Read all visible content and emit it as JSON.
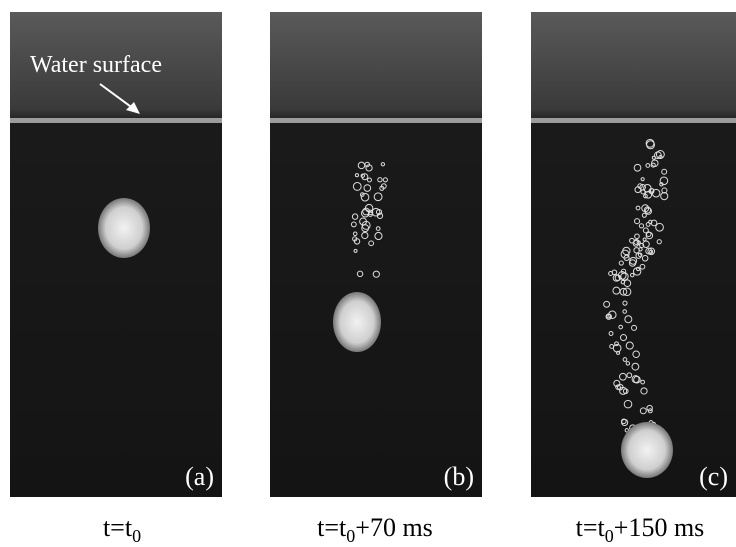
{
  "annotation": "Water surface",
  "panels": [
    {
      "label": "(a)",
      "caption": {
        "base": "t=t",
        "sub": "0"
      }
    },
    {
      "label": "(b)",
      "caption": {
        "base": "t=t",
        "sub": "0",
        "rest": "+70 ms"
      }
    },
    {
      "label": "(c)",
      "caption": {
        "base": "t=t",
        "sub": "0",
        "rest": "+150 ms"
      }
    }
  ]
}
